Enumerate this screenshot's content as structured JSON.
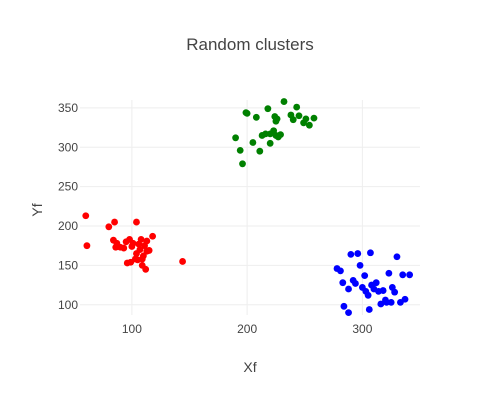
{
  "chart_data": {
    "type": "scatter",
    "title": "Random clusters",
    "xlabel": "Xf",
    "ylabel": "Yf",
    "xlim": [
      55,
      350
    ],
    "ylim": [
      87,
      360
    ],
    "xticks": [
      100,
      200,
      300
    ],
    "yticks": [
      100,
      150,
      200,
      250,
      300,
      350
    ],
    "grid": true,
    "legend": "none",
    "series": [
      {
        "color": "#ff0000",
        "points": [
          [
            60,
            213
          ],
          [
            61,
            175
          ],
          [
            80,
            199
          ],
          [
            85,
            205
          ],
          [
            84,
            182
          ],
          [
            86,
            173
          ],
          [
            87,
            178
          ],
          [
            90,
            173
          ],
          [
            93,
            172
          ],
          [
            95,
            180
          ],
          [
            96,
            153
          ],
          [
            98,
            183
          ],
          [
            99,
            154
          ],
          [
            100,
            174
          ],
          [
            101,
            178
          ],
          [
            104,
            165
          ],
          [
            104,
            205
          ],
          [
            105,
            157
          ],
          [
            106,
            177
          ],
          [
            107,
            170
          ],
          [
            108,
            183
          ],
          [
            109,
            150
          ],
          [
            110,
            162
          ],
          [
            111,
            175
          ],
          [
            112,
            145
          ],
          [
            113,
            181
          ],
          [
            113,
            168
          ],
          [
            115,
            169
          ],
          [
            118,
            187
          ],
          [
            144,
            155
          ],
          [
            103,
            158
          ],
          [
            109,
            158
          ]
        ]
      },
      {
        "color": "#008000",
        "points": [
          [
            190,
            312
          ],
          [
            194,
            296
          ],
          [
            196,
            279
          ],
          [
            199,
            344
          ],
          [
            200,
            343
          ],
          [
            205,
            306
          ],
          [
            208,
            338
          ],
          [
            211,
            295
          ],
          [
            213,
            315
          ],
          [
            216,
            317
          ],
          [
            218,
            349
          ],
          [
            220,
            317
          ],
          [
            220,
            305
          ],
          [
            223,
            321
          ],
          [
            224,
            339
          ],
          [
            225,
            315
          ],
          [
            225,
            333
          ],
          [
            226,
            336
          ],
          [
            227,
            313
          ],
          [
            229,
            316
          ],
          [
            232,
            358
          ],
          [
            238,
            341
          ],
          [
            240,
            335
          ],
          [
            243,
            351
          ],
          [
            245,
            340
          ],
          [
            249,
            331
          ],
          [
            251,
            336
          ],
          [
            254,
            328
          ],
          [
            258,
            337
          ]
        ]
      },
      {
        "color": "#0000ff",
        "points": [
          [
            278,
            146
          ],
          [
            281,
            143
          ],
          [
            283,
            128
          ],
          [
            284,
            98
          ],
          [
            288,
            90
          ],
          [
            290,
            164
          ],
          [
            292,
            131
          ],
          [
            294,
            127
          ],
          [
            296,
            165
          ],
          [
            298,
            150
          ],
          [
            300,
            122
          ],
          [
            302,
            137
          ],
          [
            303,
            117
          ],
          [
            305,
            112
          ],
          [
            306,
            94
          ],
          [
            307,
            166
          ],
          [
            308,
            125
          ],
          [
            310,
            120
          ],
          [
            312,
            128
          ],
          [
            314,
            117
          ],
          [
            316,
            101
          ],
          [
            318,
            118
          ],
          [
            320,
            106
          ],
          [
            321,
            103
          ],
          [
            323,
            140
          ],
          [
            325,
            103
          ],
          [
            326,
            122
          ],
          [
            328,
            116
          ],
          [
            330,
            161
          ],
          [
            333,
            103
          ],
          [
            335,
            138
          ],
          [
            337,
            107
          ],
          [
            341,
            138
          ],
          [
            288,
            120
          ]
        ]
      }
    ]
  }
}
